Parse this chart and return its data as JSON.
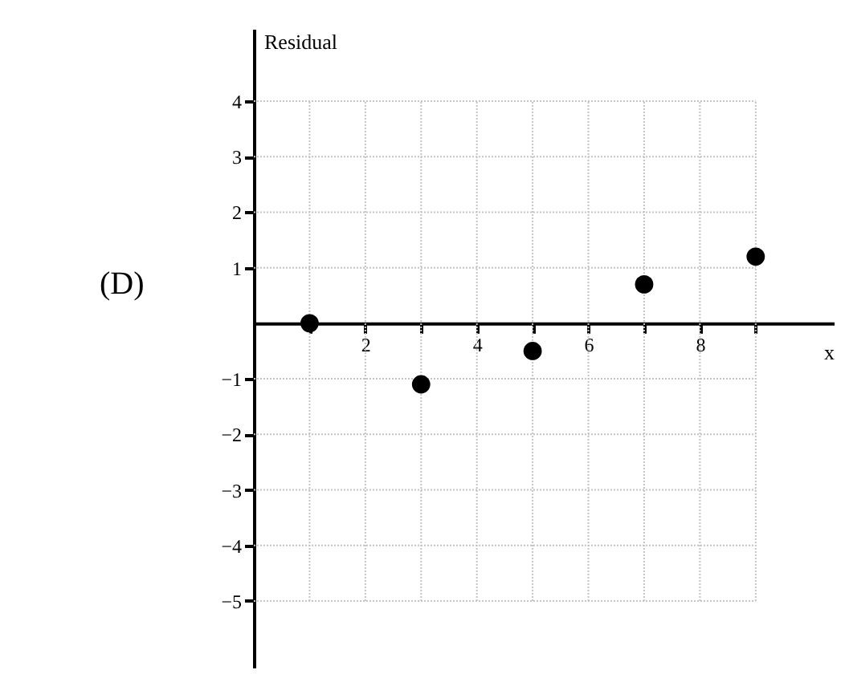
{
  "chart_data": {
    "type": "scatter",
    "ylabel": "Residual",
    "xlabel": "x",
    "annotations": [
      "(D)"
    ],
    "x": [
      1,
      3,
      5,
      7,
      9
    ],
    "series": [
      {
        "color": "#000000",
        "values": [
          0,
          -1.1,
          -0.5,
          0.7,
          1.2
        ]
      }
    ],
    "xlim": [
      0,
      10.4
    ],
    "ylim": [
      -6.2,
      5.3
    ],
    "xticks": [
      {
        "value": 1,
        "label": null
      },
      2,
      {
        "value": 3,
        "label": null
      },
      4,
      {
        "value": 5,
        "label": null
      },
      6,
      {
        "value": 7,
        "label": null
      },
      8,
      {
        "value": 9,
        "label": null
      }
    ],
    "yticks": [
      {
        "value": -5,
        "label": "−5"
      },
      {
        "value": -4,
        "label": "−4"
      },
      {
        "value": -3,
        "label": "−3"
      },
      {
        "value": -2,
        "label": "−2"
      },
      {
        "value": -1,
        "label": "−1"
      },
      1,
      2,
      3,
      4
    ],
    "grid": true,
    "marker": "circle"
  }
}
